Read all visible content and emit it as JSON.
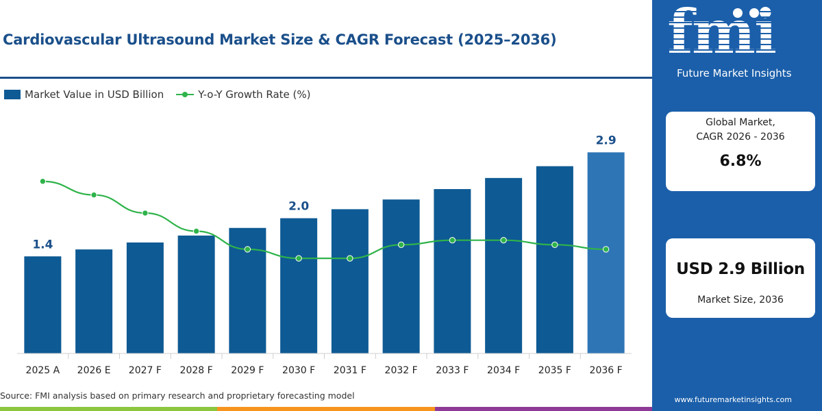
{
  "chart_title": "Cardiovascular Ultrasound Market Size & CAGR Forecast (2025–2036)",
  "legend": {
    "bar_label": "Market Value in USD Billion",
    "line_label": "Y-o-Y Growth Rate (%)"
  },
  "colors": {
    "brand_blue": "#1b5faa",
    "bar": "#0e5a94",
    "bar_last": "#2e75b6",
    "line": "#2fb34a",
    "title": "#1a4f8a"
  },
  "chart_data": {
    "type": "bar",
    "categories": [
      "2025 A",
      "2026 E",
      "2027 F",
      "2028 F",
      "2029 F",
      "2030 F",
      "2031 F",
      "2032 F",
      "2033 F",
      "2034 F",
      "2035 F",
      "2036 F"
    ],
    "series": [
      {
        "name": "Market Value in USD Billion",
        "type": "bar",
        "values": [
          1.4,
          1.5,
          1.6,
          1.7,
          1.81,
          1.95,
          2.08,
          2.22,
          2.37,
          2.53,
          2.7,
          2.9
        ]
      },
      {
        "name": "Y-o-Y Growth Rate (%)",
        "type": "line",
        "values": [
          8.4,
          8.1,
          7.7,
          7.3,
          6.9,
          6.7,
          6.7,
          7.0,
          7.1,
          7.1,
          7.0,
          6.9
        ]
      }
    ],
    "data_labels": [
      {
        "index": 0,
        "text": "1.4"
      },
      {
        "index": 5,
        "text": "2.0"
      },
      {
        "index": 11,
        "text": "2.9"
      }
    ],
    "ylim": [
      0,
      3.2
    ],
    "y2lim": [
      4.6,
      9.5
    ],
    "grid": false,
    "legend_position": "top-left"
  },
  "source_note": "Source: FMI analysis based on primary research and proprietary forecasting model",
  "sidebar": {
    "logo_text": "fmi",
    "logo_sub": "Future Market Insights",
    "cagr_label_line1": "Global Market,",
    "cagr_label_line2": "CAGR 2026 - 2036",
    "cagr_value": "6.8%",
    "market_size_value": "USD 2.9 Billion",
    "market_size_label": "Market Size, 2036",
    "website": "www.futuremarketinsights.com"
  }
}
